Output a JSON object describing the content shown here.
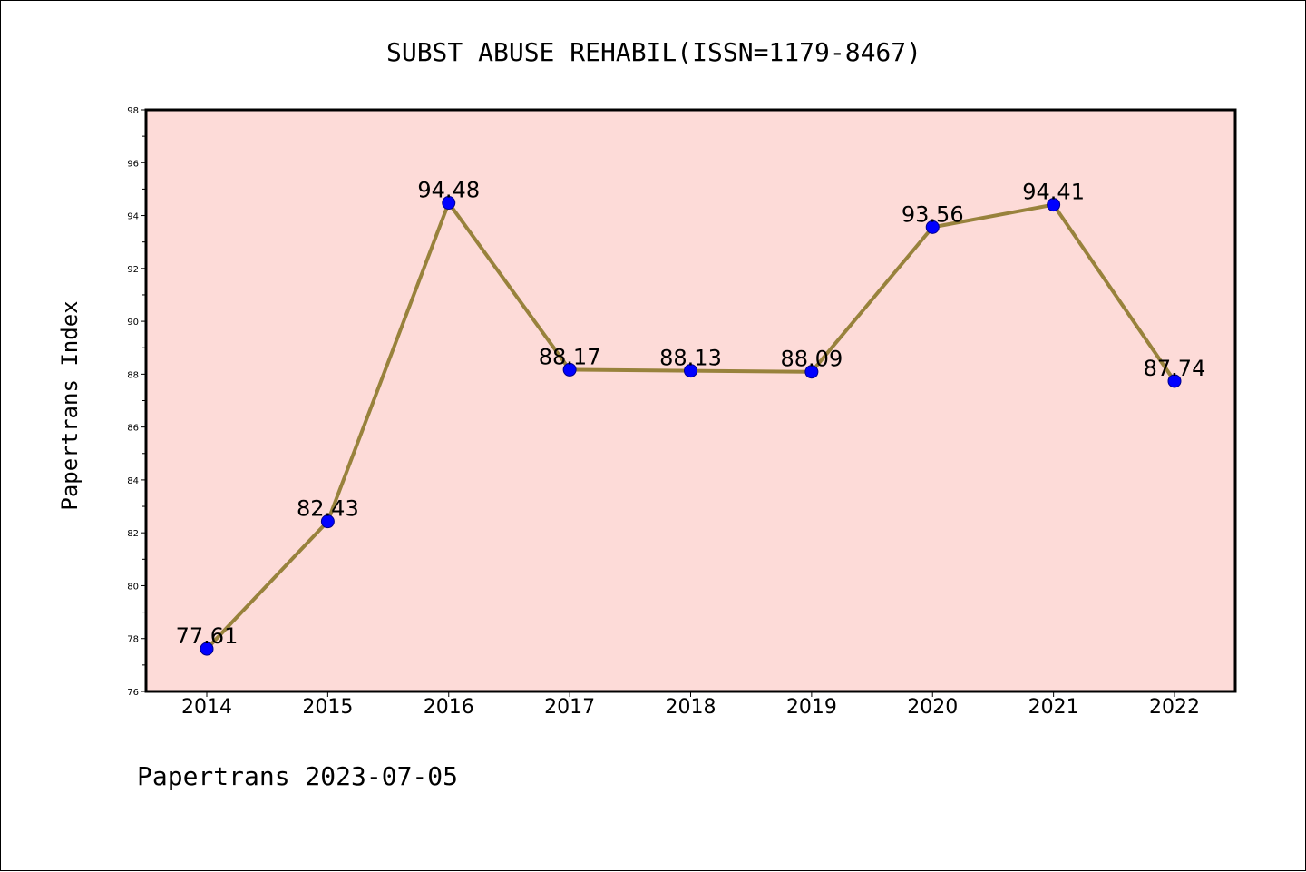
{
  "chart_data": {
    "type": "line",
    "title": "SUBST ABUSE REHABIL(ISSN=1179-8467)",
    "xlabel": "",
    "ylabel": "Papertrans Index",
    "categories": [
      "2014",
      "2015",
      "2016",
      "2017",
      "2018",
      "2019",
      "2020",
      "2021",
      "2022"
    ],
    "values": [
      77.61,
      82.43,
      94.48,
      88.17,
      88.13,
      88.09,
      93.56,
      94.41,
      87.74
    ],
    "data_labels": [
      "77.61",
      "82.43",
      "94.48",
      "88.17",
      "88.13",
      "88.09",
      "93.56",
      "94.41",
      "87.74"
    ],
    "ylim": [
      76,
      98
    ],
    "yticks": [
      76,
      78,
      80,
      82,
      84,
      86,
      88,
      90,
      92,
      94,
      96,
      98
    ],
    "ytick_labels": [
      "76",
      "78",
      "80",
      "82",
      "84",
      "86",
      "88",
      "90",
      "92",
      "94",
      "96",
      "98"
    ],
    "grid": false,
    "legend": "none",
    "colors": {
      "plot_background": "#fddbd8",
      "line": "#98823c",
      "marker_fill": "#0000ff",
      "marker_edge": "#00008b",
      "axes": "#000000"
    }
  },
  "footer": "Papertrans 2023-07-05"
}
